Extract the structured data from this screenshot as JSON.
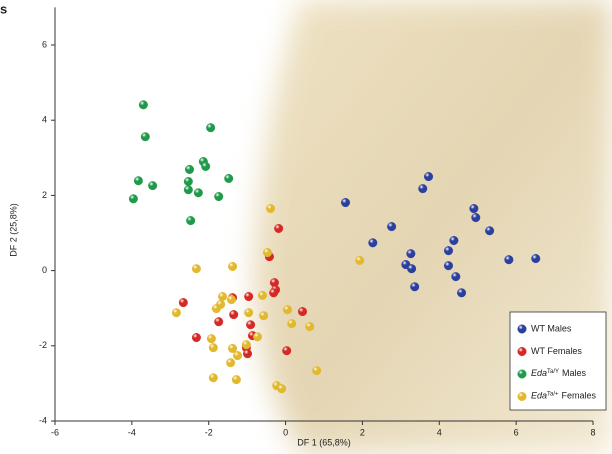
{
  "chart_data": {
    "type": "scatter",
    "panel_label": "s",
    "x_label": "DF 1 (65,8%)",
    "y_label": "DF 2 (25,8%)",
    "xlim": [
      -6,
      8
    ],
    "xticks": [
      -6,
      -4,
      -2,
      0,
      2,
      4,
      6,
      8
    ],
    "ylim": [
      -4,
      7
    ],
    "yticks": [
      -4,
      -2,
      0,
      2,
      4,
      6
    ],
    "legend": "lower right",
    "series": [
      {
        "name": "WT Males",
        "color": "#2b3f9e",
        "x": [
          1.56,
          2.27,
          2.76,
          3.26,
          3.13,
          3.28,
          3.36,
          3.57,
          3.72,
          4.24,
          4.38,
          4.24,
          4.43,
          4.58,
          4.9,
          4.95,
          5.31,
          5.81,
          6.51
        ],
        "values": [
          1.81,
          0.74,
          1.17,
          0.45,
          0.16,
          0.05,
          -0.43,
          2.18,
          2.5,
          0.53,
          0.8,
          0.13,
          -0.16,
          -0.59,
          1.65,
          1.41,
          1.06,
          0.29,
          0.32
        ]
      },
      {
        "name": "WT Females",
        "color": "#d42a25",
        "x": [
          -0.18,
          -0.42,
          -0.29,
          -0.26,
          -0.31,
          -0.96,
          -1.38,
          -0.91,
          -1.74,
          -1.35,
          -2.66,
          -2.32,
          -1.02,
          -0.99,
          -0.86,
          0.03,
          0.44
        ],
        "values": [
          1.12,
          0.37,
          -0.32,
          -0.51,
          -0.59,
          -0.69,
          -0.72,
          -1.44,
          -1.36,
          -1.17,
          -0.85,
          -1.78,
          -2.05,
          -2.21,
          -1.73,
          -2.13,
          -1.09
        ]
      },
      {
        "name_parts": [
          "Eda",
          "Ta/Y",
          "Males"
        ],
        "color": "#1f9a4a",
        "x": [
          -3.7,
          -3.65,
          -3.83,
          -3.46,
          -3.96,
          -1.95,
          -2.14,
          -2.08,
          -2.5,
          -2.53,
          -2.53,
          -2.27,
          -1.48,
          -1.74,
          -2.47
        ],
        "values": [
          4.41,
          3.56,
          2.39,
          2.26,
          1.91,
          3.8,
          2.9,
          2.77,
          2.69,
          2.37,
          2.15,
          2.07,
          2.45,
          1.97,
          1.33
        ]
      },
      {
        "name_parts": [
          "Eda",
          "Ta/+",
          "Females"
        ],
        "color": "#e2b82c",
        "x": [
          -0.39,
          -2.32,
          -1.38,
          -0.47,
          -2.84,
          -1.64,
          -1.41,
          -0.6,
          0.05,
          0.16,
          0.63,
          -0.57,
          -0.96,
          -1.69,
          -1.8,
          -0.73,
          -1.38,
          -1.93,
          -1.88,
          -1.25,
          -1.02,
          -1.43,
          -1.88,
          -1.28,
          -0.23,
          -0.1,
          0.81,
          1.93
        ],
        "values": [
          1.65,
          0.05,
          0.11,
          0.48,
          -1.12,
          -0.69,
          -0.77,
          -0.66,
          -1.04,
          -1.41,
          -1.49,
          -1.2,
          -1.12,
          -0.9,
          -1.01,
          -1.76,
          -2.07,
          -1.81,
          -2.05,
          -2.26,
          -1.97,
          -2.45,
          -2.85,
          -2.9,
          -3.06,
          -3.14,
          -2.66,
          0.27
        ]
      }
    ]
  }
}
